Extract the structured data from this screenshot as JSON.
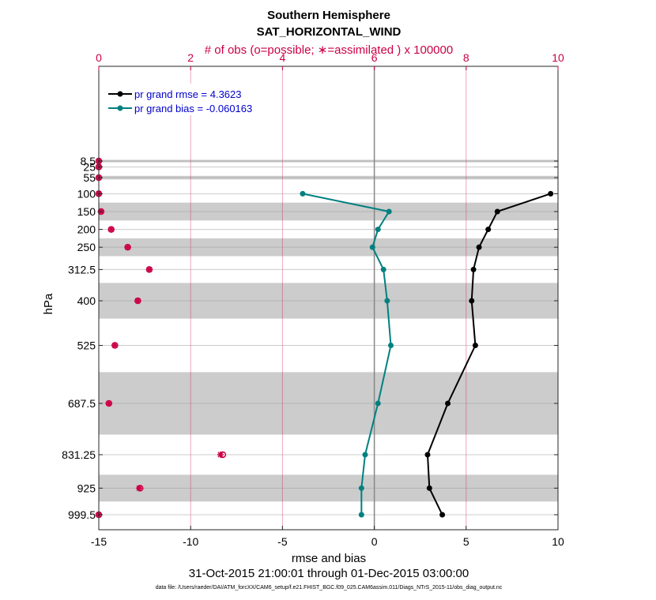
{
  "chart_data": {
    "type": "line",
    "title": "Southern Hemisphere",
    "subtitle": "SAT_HORIZONTAL_WIND",
    "top_axis_label": "# of obs (o=possible; ∗=assimilated ) x 100000",
    "xlabel": "rmse and bias",
    "ylabel": "hPa",
    "date_range": "31-Oct-2015 21:00:01 through 01-Dec-2015 03:00:00",
    "footnote": "data file: /Users/raeder/DAI/ATM_forcXX/CAM6_setup/f.e21.FHIST_BGC.f09_025.CAM6assim.011/Diags_NTrS_2015-11/obs_diag_output.nc",
    "xlim": [
      -15,
      10
    ],
    "x_ticks": [
      -15,
      -10,
      -5,
      0,
      5,
      10
    ],
    "x_tick_labels": [
      "-15",
      "-10",
      "-5",
      "0",
      "5",
      "10"
    ],
    "top_xlim": [
      0,
      10
    ],
    "top_ticks": [
      0,
      2,
      4,
      6,
      8,
      10
    ],
    "top_tick_labels": [
      "0",
      "2",
      "4",
      "6",
      "8",
      "10"
    ],
    "levels": [
      8.5,
      25,
      55,
      100,
      150,
      200,
      250,
      312.5,
      400,
      525,
      687.5,
      831.25,
      925,
      999.5
    ],
    "level_labels": [
      "8.5",
      "25",
      "55",
      "100",
      "150",
      "200",
      "250",
      "312.5",
      "400",
      "525",
      "687.5",
      "831.25",
      "925",
      "999.5"
    ],
    "level_bounds": [
      [
        5,
        12
      ],
      [
        20,
        30
      ],
      [
        50,
        60
      ],
      [
        90,
        110
      ],
      [
        125,
        175
      ],
      [
        185,
        215
      ],
      [
        225,
        275
      ],
      [
        287.5,
        337.5
      ],
      [
        350,
        450
      ],
      [
        475,
        575
      ],
      [
        600,
        775
      ],
      [
        787.5,
        875
      ],
      [
        887.5,
        962.5
      ],
      [
        975,
        1025
      ]
    ],
    "series": [
      {
        "name": "pr grand rmse = 4.3623",
        "color": "#000000",
        "levels": [
          100,
          150,
          200,
          250,
          312.5,
          400,
          525,
          687.5,
          831.25,
          925,
          999.5
        ],
        "values": [
          9.6,
          6.7,
          6.2,
          5.7,
          5.4,
          5.3,
          5.5,
          4.0,
          2.9,
          3.0,
          3.7
        ]
      },
      {
        "name": "pr grand bias = -0.060163",
        "color": "#008080",
        "levels": [
          100,
          150,
          200,
          250,
          312.5,
          400,
          525,
          687.5,
          831.25,
          925,
          999.5
        ],
        "values": [
          -3.9,
          0.8,
          0.2,
          -0.1,
          0.5,
          0.7,
          0.9,
          0.2,
          -0.5,
          -0.7,
          -0.7
        ]
      }
    ],
    "obs_counts": {
      "color": "#cc0044",
      "levels": [
        8.5,
        25,
        55,
        100,
        150,
        200,
        250,
        312.5,
        400,
        525,
        687.5,
        831.25,
        925,
        999.5
      ],
      "possible": [
        0.0,
        0.0,
        0.0,
        0.0,
        0.05,
        0.27,
        0.63,
        1.1,
        0.85,
        0.35,
        0.22,
        2.7,
        0.9,
        0.0
      ],
      "assimilated": [
        0.0,
        0.0,
        0.0,
        0.0,
        0.05,
        0.27,
        0.63,
        1.1,
        0.85,
        0.35,
        0.22,
        2.65,
        0.88,
        0.0
      ]
    },
    "legend_position": "top-left",
    "grid": true
  }
}
